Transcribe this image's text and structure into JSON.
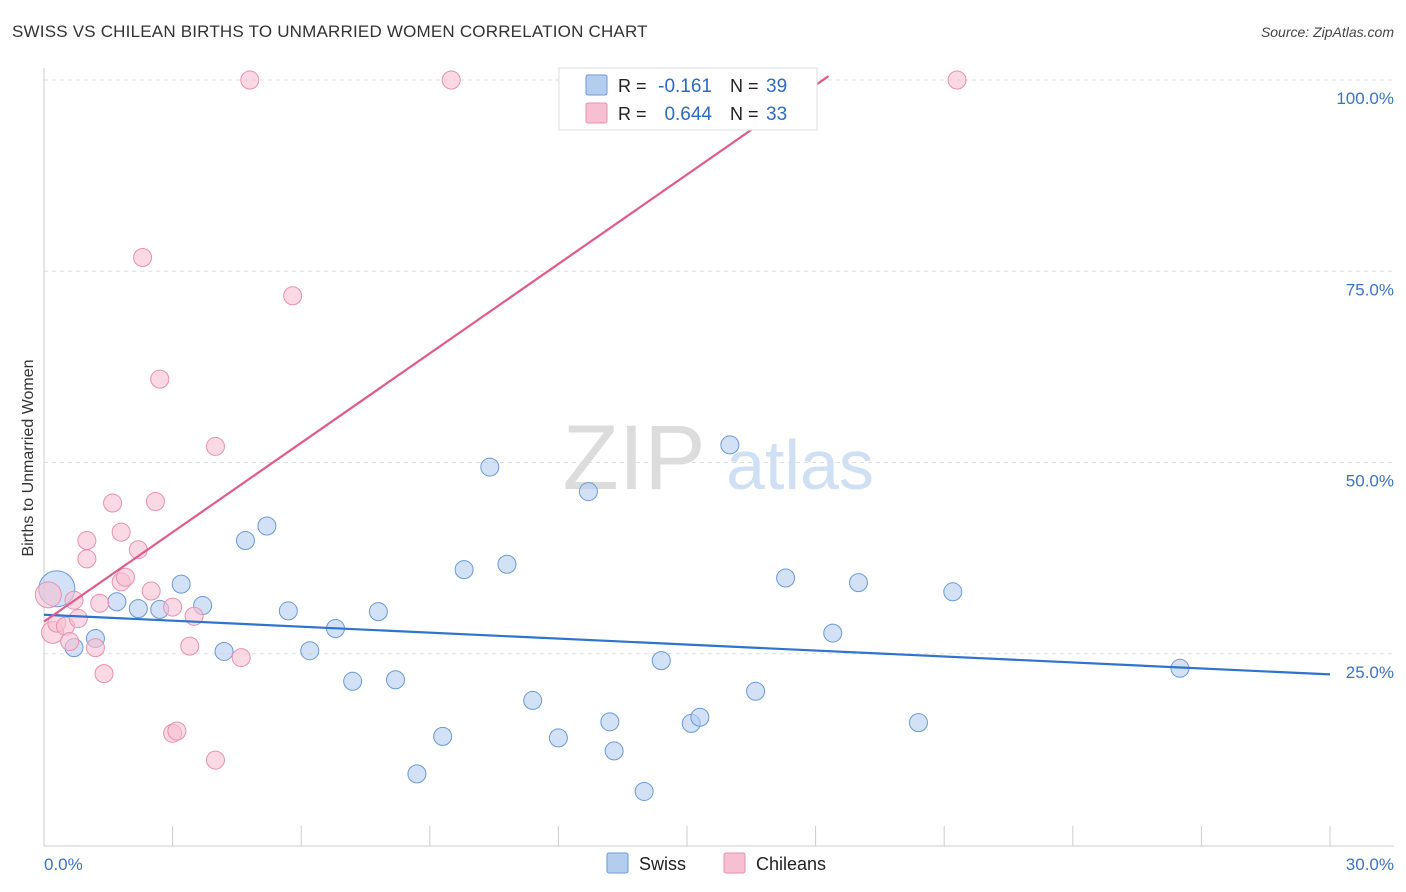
{
  "chart_data": {
    "type": "scatter",
    "title": "SWISS VS CHILEAN BIRTHS TO UNMARRIED WOMEN CORRELATION CHART",
    "source": "Source: ZipAtlas.com",
    "xlabel": "",
    "ylabel": "Births to Unmarried Women",
    "xlim": [
      0,
      30
    ],
    "ylim": [
      0,
      102
    ],
    "x_tick_labels": [
      "0.0%",
      "30.0%"
    ],
    "y_ticks": [
      25,
      50,
      75,
      100
    ],
    "y_tick_labels": [
      "25.0%",
      "50.0%",
      "75.0%",
      "100.0%"
    ],
    "grid": true,
    "watermark": {
      "zip": "ZIP",
      "atlas": "atlas"
    },
    "legend_position": "top-center",
    "colors": {
      "swiss_fill": "#b4cdee",
      "swiss_edge": "#6a9ad8",
      "swiss_line": "#2e74cc",
      "chilean_fill": "#f6c0d2",
      "chilean_edge": "#e890b0",
      "chilean_line": "#e05a8a",
      "tick_label": "#3a73c4"
    },
    "series": [
      {
        "name": "Swiss",
        "r_label": "R =",
        "r_value": "-0.161",
        "n_label": "N =",
        "n_value": "39",
        "trend": [
          [
            0.0,
            30.1
          ],
          [
            30.0,
            22.3
          ]
        ],
        "points": [
          [
            0.3,
            33.5
          ],
          [
            0.7,
            25.8
          ],
          [
            1.2,
            27.0
          ],
          [
            1.7,
            31.8
          ],
          [
            2.2,
            30.9
          ],
          [
            2.7,
            30.8
          ],
          [
            3.2,
            34.1
          ],
          [
            3.7,
            31.3
          ],
          [
            4.2,
            25.3
          ],
          [
            4.7,
            39.8
          ],
          [
            5.2,
            41.7
          ],
          [
            5.7,
            30.6
          ],
          [
            6.2,
            25.4
          ],
          [
            6.8,
            28.3
          ],
          [
            7.2,
            21.4
          ],
          [
            7.8,
            30.5
          ],
          [
            8.2,
            21.6
          ],
          [
            8.7,
            9.3
          ],
          [
            9.3,
            14.2
          ],
          [
            9.8,
            36.0
          ],
          [
            10.4,
            49.4
          ],
          [
            10.8,
            36.7
          ],
          [
            11.4,
            18.9
          ],
          [
            12.0,
            14.0
          ],
          [
            12.7,
            46.2
          ],
          [
            13.2,
            16.1
          ],
          [
            13.3,
            12.3
          ],
          [
            14.0,
            7.0
          ],
          [
            14.4,
            24.1
          ],
          [
            15.1,
            15.9
          ],
          [
            15.3,
            16.7
          ],
          [
            16.0,
            52.3
          ],
          [
            16.6,
            20.1
          ],
          [
            17.3,
            34.9
          ],
          [
            18.4,
            27.7
          ],
          [
            19.0,
            34.3
          ],
          [
            20.4,
            16.0
          ],
          [
            21.2,
            33.1
          ],
          [
            26.5,
            23.1
          ]
        ]
      },
      {
        "name": "Chileans",
        "r_label": "R =",
        "r_value": "0.644",
        "n_label": "N =",
        "n_value": "33",
        "trend": [
          [
            0.0,
            29.2
          ],
          [
            18.3,
            100.5
          ]
        ],
        "points": [
          [
            0.1,
            32.7
          ],
          [
            0.2,
            27.8
          ],
          [
            0.3,
            29.0
          ],
          [
            0.5,
            28.6
          ],
          [
            0.6,
            26.6
          ],
          [
            0.7,
            32.0
          ],
          [
            0.8,
            29.6
          ],
          [
            1.0,
            37.4
          ],
          [
            1.0,
            39.8
          ],
          [
            1.2,
            25.8
          ],
          [
            1.3,
            31.6
          ],
          [
            1.4,
            22.4
          ],
          [
            1.6,
            44.7
          ],
          [
            1.8,
            34.4
          ],
          [
            1.8,
            40.9
          ],
          [
            1.9,
            35.0
          ],
          [
            2.2,
            38.6
          ],
          [
            2.3,
            76.8
          ],
          [
            2.5,
            33.2
          ],
          [
            2.6,
            44.9
          ],
          [
            2.7,
            60.9
          ],
          [
            3.0,
            31.1
          ],
          [
            3.0,
            14.6
          ],
          [
            3.1,
            14.9
          ],
          [
            3.4,
            26.0
          ],
          [
            3.5,
            29.9
          ],
          [
            4.0,
            11.1
          ],
          [
            4.0,
            52.1
          ],
          [
            4.6,
            24.5
          ],
          [
            4.8,
            100.0
          ],
          [
            5.8,
            71.8
          ],
          [
            9.5,
            100.0
          ],
          [
            21.3,
            100.0
          ]
        ]
      }
    ]
  }
}
